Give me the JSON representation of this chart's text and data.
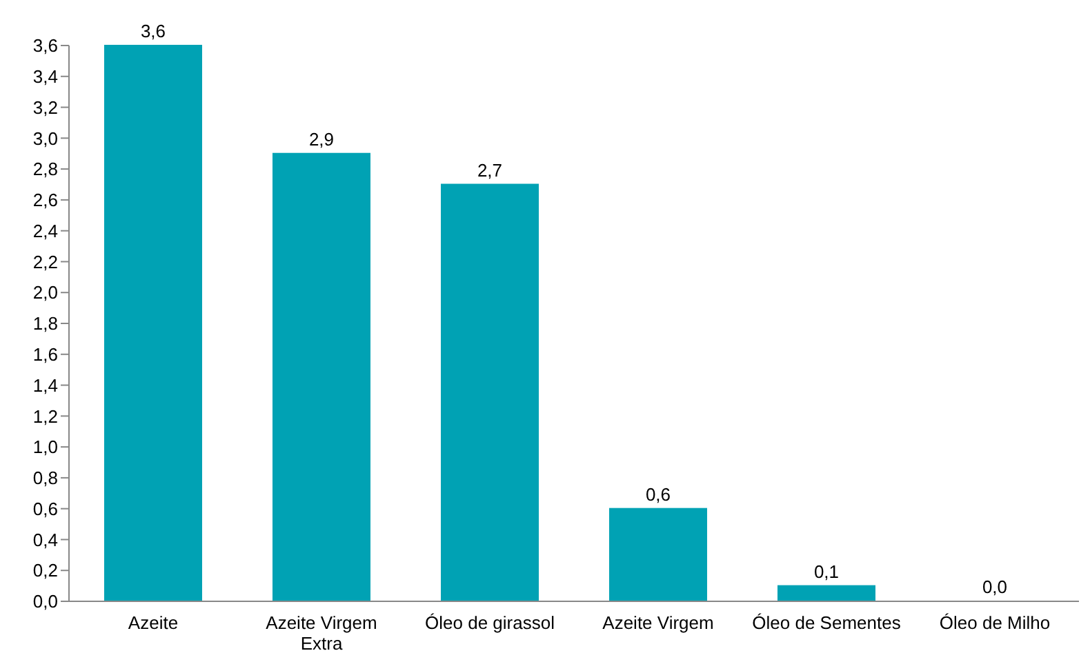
{
  "chart_data": {
    "type": "bar",
    "categories": [
      "Azeite",
      "Azeite Virgem Extra",
      "Óleo de girassol",
      "Azeite Virgem",
      "Óleo de Sementes",
      "Óleo de Milho"
    ],
    "values": [
      3.6,
      2.9,
      2.7,
      0.6,
      0.1,
      0.0
    ],
    "value_labels": [
      "3,6",
      "2,9",
      "2,7",
      "0,6",
      "0,1",
      "0,0"
    ],
    "color": "#00a2b4",
    "ylim": [
      0,
      3.6
    ],
    "yticks": [
      {
        "value": 0,
        "label": "0,0"
      },
      {
        "value": 0.2,
        "label": "0,2"
      },
      {
        "value": 0.4,
        "label": "0,4"
      },
      {
        "value": 0.6,
        "label": "0,6"
      },
      {
        "value": 0.8,
        "label": "0,8"
      },
      {
        "value": 1.0,
        "label": "1,0"
      },
      {
        "value": 1.2,
        "label": "1,2"
      },
      {
        "value": 1.4,
        "label": "1,4"
      },
      {
        "value": 1.6,
        "label": "1,6"
      },
      {
        "value": 1.8,
        "label": "1,8"
      },
      {
        "value": 2.0,
        "label": "2,0"
      },
      {
        "value": 2.2,
        "label": "2,2"
      },
      {
        "value": 2.4,
        "label": "2,4"
      },
      {
        "value": 2.6,
        "label": "2,6"
      },
      {
        "value": 2.8,
        "label": "2,8"
      },
      {
        "value": 3.0,
        "label": "3,0"
      },
      {
        "value": 3.2,
        "label": "3,2"
      },
      {
        "value": 3.4,
        "label": "3,4"
      },
      {
        "value": 3.6,
        "label": "3,6"
      }
    ],
    "grid": false,
    "legend": false
  }
}
